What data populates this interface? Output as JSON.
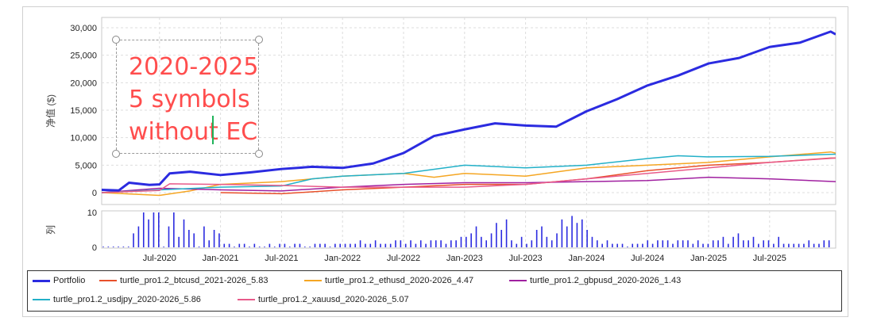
{
  "chart_data": [
    {
      "type": "line",
      "title": "",
      "ylabel": "净值 ($)",
      "xlabel": "",
      "ylim": [
        -1200,
        31000
      ],
      "yticks": [
        "0",
        "5,000",
        "10,000",
        "15,000",
        "20,000",
        "25,000",
        "30,000"
      ],
      "ytick_values": [
        0,
        5000,
        10000,
        15000,
        20000,
        25000,
        30000
      ],
      "xticks": [
        "Jul-2020",
        "Jan-2021",
        "Jul-2021",
        "Jan-2022",
        "Jul-2022",
        "Jan-2023",
        "Jul-2023",
        "Jan-2024",
        "Jul-2024",
        "Jan-2025",
        "Jul-2025"
      ],
      "xtick_months": [
        6,
        12,
        18,
        24,
        30,
        36,
        42,
        48,
        54,
        60,
        66
      ],
      "x_unit": "months since Jan-2020",
      "grid": true,
      "legend_placement": "bottom",
      "series": [
        {
          "name": "Portfolio",
          "color": "#2b2be0",
          "width": 3,
          "x": [
            0,
            2,
            3,
            5,
            6,
            7,
            9,
            12,
            15,
            18,
            21,
            24,
            27,
            30,
            33,
            36,
            39,
            42,
            45,
            48,
            51,
            54,
            57,
            60,
            63,
            66,
            69,
            72,
            73
          ],
          "y": [
            500,
            400,
            1800,
            1400,
            1500,
            3500,
            3800,
            3200,
            3700,
            4300,
            4700,
            4500,
            5300,
            7200,
            10300,
            11500,
            12600,
            12200,
            12000,
            14800,
            17000,
            19500,
            21300,
            23500,
            24500,
            26500,
            27300,
            29300,
            28800
          ]
        },
        {
          "name": "turtle_pro1.2_btcusd_2021-2026_5.83",
          "color": "#e8502a",
          "width": 1.5,
          "x": [
            12,
            18,
            24,
            30,
            36,
            42,
            48,
            54,
            60,
            66,
            72,
            73
          ],
          "y": [
            0,
            -200,
            500,
            1000,
            1500,
            1500,
            2500,
            4000,
            5000,
            5500,
            6300,
            6300
          ]
        },
        {
          "name": "turtle_pro1.2_ethusd_2020-2026_4.47",
          "color": "#f5a623",
          "width": 1.5,
          "x": [
            0,
            6,
            9,
            12,
            18,
            24,
            30,
            33,
            36,
            42,
            48,
            54,
            60,
            66,
            72,
            73
          ],
          "y": [
            0,
            -500,
            300,
            1500,
            2000,
            3000,
            3500,
            2800,
            3500,
            3000,
            4500,
            5000,
            5500,
            6500,
            7400,
            7200
          ]
        },
        {
          "name": "turtle_pro1.2_gbpusd_2020-2026_1.43",
          "color": "#a020a0",
          "width": 1.5,
          "x": [
            0,
            6,
            12,
            18,
            24,
            30,
            36,
            42,
            48,
            54,
            60,
            66,
            73
          ],
          "y": [
            0,
            800,
            500,
            300,
            1000,
            1500,
            1800,
            1800,
            2000,
            2200,
            2800,
            2500,
            2000
          ]
        },
        {
          "name": "turtle_pro1.2_usdjpy_2020-2026_5.86",
          "color": "#22b0c8",
          "width": 1.5,
          "x": [
            0,
            6,
            12,
            18,
            21,
            24,
            30,
            36,
            42,
            48,
            54,
            57,
            60,
            66,
            73
          ],
          "y": [
            0,
            500,
            1000,
            1200,
            2500,
            3000,
            3500,
            5000,
            4500,
            5000,
            6200,
            6700,
            6500,
            6600,
            7000
          ]
        },
        {
          "name": "turtle_pro1.2_xauusd_2020-2026_5.07",
          "color": "#e85a8a",
          "width": 1.5,
          "x": [
            0,
            6,
            7,
            12,
            18,
            24,
            30,
            36,
            42,
            48,
            54,
            60,
            66,
            73
          ],
          "y": [
            0,
            400,
            1600,
            1500,
            1300,
            1000,
            1000,
            1000,
            1500,
            2500,
            3500,
            4500,
            5500,
            6300
          ]
        }
      ]
    },
    {
      "type": "bar",
      "ylabel": "列",
      "ylim": [
        0,
        10
      ],
      "yticks": [
        "0",
        "10"
      ],
      "ytick_values": [
        0,
        10
      ],
      "color": "#2b2be0",
      "x_unit": "half-months since Jan-2020",
      "values": [
        0,
        0,
        0,
        0,
        0,
        0,
        4,
        6,
        10,
        8,
        10,
        10,
        0,
        6,
        10,
        3,
        8,
        5,
        4,
        0,
        6,
        2,
        5,
        4,
        1,
        1,
        0,
        1,
        1,
        0,
        1,
        0,
        0,
        1,
        0,
        1,
        1,
        0,
        1,
        1,
        0,
        0,
        1,
        1,
        1,
        0,
        1,
        1,
        1,
        1,
        1,
        2,
        1,
        1,
        2,
        1,
        1,
        1,
        2,
        2,
        1,
        2,
        1,
        2,
        1,
        2,
        2,
        2,
        1,
        2,
        2,
        3,
        3,
        4,
        6,
        3,
        2,
        4,
        7,
        5,
        8,
        2,
        1,
        3,
        1,
        2,
        5,
        6,
        3,
        2,
        4,
        8,
        6,
        9,
        7,
        8,
        5,
        3,
        2,
        1,
        2,
        1,
        1,
        1,
        0,
        1,
        1,
        1,
        2,
        1,
        2,
        2,
        2,
        1,
        2,
        2,
        2,
        1,
        2,
        1,
        1,
        2,
        2,
        3,
        1,
        3,
        4,
        2,
        2,
        3,
        1,
        2,
        2,
        1,
        3,
        1,
        1,
        1,
        1,
        1,
        2,
        1,
        1,
        2,
        2
      ]
    }
  ],
  "annotation": {
    "lines": "2020-2025\n5 symbols\nwithout EC"
  }
}
